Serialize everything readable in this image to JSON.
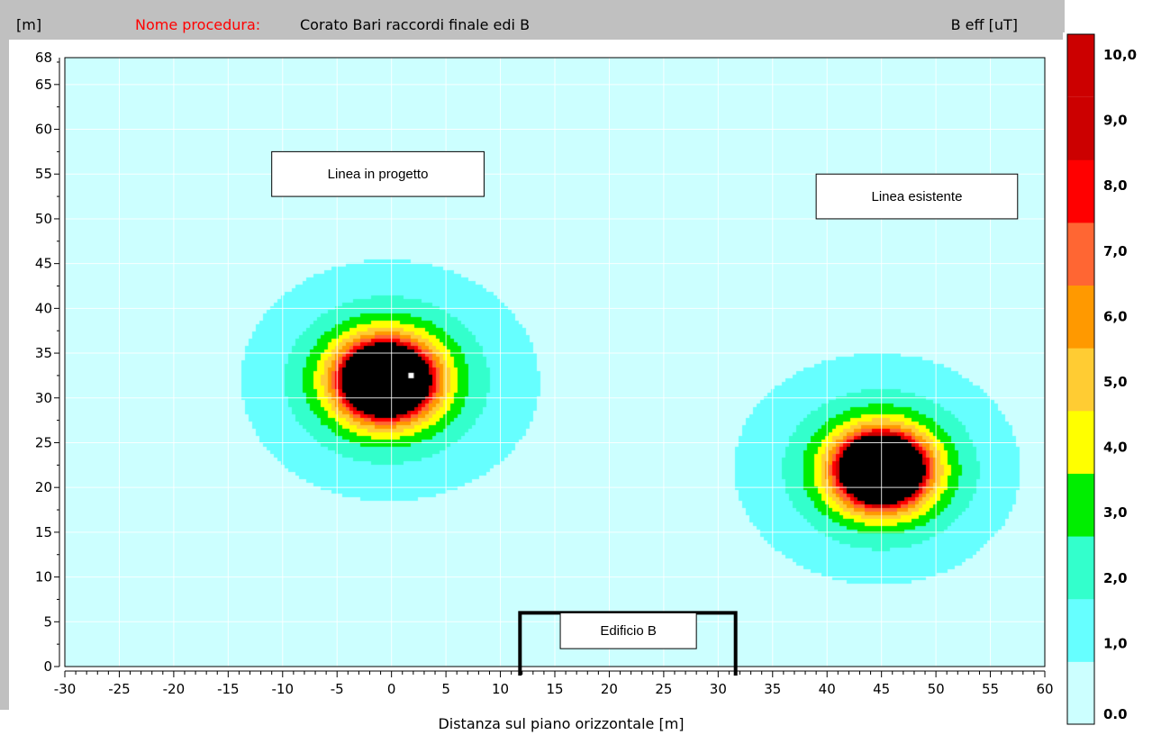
{
  "header": {
    "y_unit": "[m]",
    "procedure_label": "Nome procedura:",
    "procedure_name": "Corato Bari raccordi finale edi B",
    "field_label": "B eff [uT]"
  },
  "colors": {
    "panel_gray": "#c0c0c0",
    "label_red": "#ff0000",
    "grid": "#ffffff",
    "core": "#000000"
  },
  "chart_data": {
    "type": "heatmap",
    "title": "",
    "xlabel": "Distanza sul piano orizzontale [m]",
    "ylabel": "[m]",
    "xlim": [
      -30,
      60
    ],
    "ylim": [
      0,
      68
    ],
    "x_ticks": [
      "-30",
      "-25",
      "-20",
      "-15",
      "-10",
      "-5",
      "0",
      "5",
      "10",
      "15",
      "20",
      "25",
      "30",
      "35",
      "40",
      "45",
      "50",
      "55",
      "60"
    ],
    "y_ticks": [
      "0",
      "5",
      "10",
      "15",
      "20",
      "25",
      "30",
      "35",
      "40",
      "45",
      "50",
      "55",
      "60",
      "65",
      "68"
    ],
    "grid": true,
    "sources": [
      {
        "x": -0.5,
        "y": 32,
        "k": 170
      },
      {
        "x": 45,
        "y": 22,
        "k": 155
      }
    ],
    "source_marker": {
      "x": 1.8,
      "y": 32.5
    },
    "colorbar": {
      "title": "B eff [uT]",
      "tick_labels": [
        "0.0",
        "1,0",
        "2,0",
        "3,0",
        "4,0",
        "5,0",
        "6,0",
        "7,0",
        "8,0",
        "9,0",
        "10,0"
      ],
      "levels": [
        {
          "min": 0,
          "max": 1,
          "color": "#ccffff"
        },
        {
          "min": 1,
          "max": 2,
          "color": "#66ffff"
        },
        {
          "min": 2,
          "max": 3,
          "color": "#33ffcc"
        },
        {
          "min": 3,
          "max": 4,
          "color": "#00ee00"
        },
        {
          "min": 4,
          "max": 5,
          "color": "#ffff00"
        },
        {
          "min": 5,
          "max": 6,
          "color": "#ffcc33"
        },
        {
          "min": 6,
          "max": 7,
          "color": "#ff9900"
        },
        {
          "min": 7,
          "max": 8,
          "color": "#ff6633"
        },
        {
          "min": 8,
          "max": 9,
          "color": "#ff0000"
        },
        {
          "min": 9,
          "max": 10,
          "color": "#cc0000"
        },
        {
          "min": 10,
          "max": null,
          "color": "#000000"
        }
      ]
    },
    "annotations": [
      {
        "name": "label-linea-in-progetto",
        "text": "Linea in progetto",
        "x_range": [
          -11,
          8.5
        ],
        "y_range": [
          52.5,
          57.5
        ]
      },
      {
        "name": "label-linea-esistente",
        "text": "Linea esistente",
        "x_range": [
          39,
          57.5
        ],
        "y_range": [
          50,
          55
        ]
      },
      {
        "name": "label-edificio-b",
        "text": "Edificio B",
        "x_range": [
          15.5,
          28
        ],
        "y_range": [
          2,
          6
        ]
      }
    ],
    "building": {
      "name": "Edificio B",
      "x_range": [
        11.8,
        31.6
      ],
      "y_range": [
        -1,
        6
      ]
    }
  }
}
